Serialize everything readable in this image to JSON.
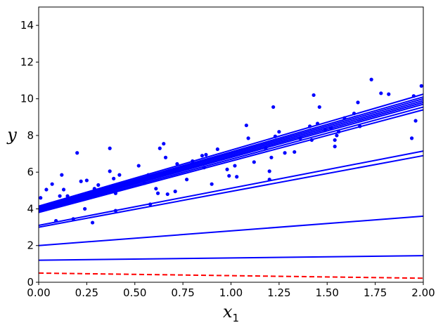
{
  "chart_data": {
    "type": "scatter",
    "title": "",
    "xlabel": "x",
    "xlabel_sub": "1",
    "ylabel": "y",
    "xlim": [
      0,
      2
    ],
    "ylim": [
      0,
      15
    ],
    "grid": false,
    "legend": "none",
    "x_ticks": [
      "0.00",
      "0.25",
      "0.50",
      "0.75",
      "1.00",
      "1.25",
      "1.50",
      "1.75",
      "2.00"
    ],
    "y_ticks": [
      "0",
      "2",
      "4",
      "6",
      "8",
      "10",
      "12",
      "14"
    ],
    "colors": {
      "points": "#0000ff",
      "lines": "#0000ff",
      "initial_line": "#ff0000"
    },
    "points": [
      {
        "x": 0.01,
        "y": 4.6
      },
      {
        "x": 0.04,
        "y": 5.05
      },
      {
        "x": 0.07,
        "y": 5.35
      },
      {
        "x": 0.09,
        "y": 3.35
      },
      {
        "x": 0.11,
        "y": 4.7
      },
      {
        "x": 0.12,
        "y": 5.85
      },
      {
        "x": 0.13,
        "y": 5.05
      },
      {
        "x": 0.15,
        "y": 4.7
      },
      {
        "x": 0.18,
        "y": 3.45
      },
      {
        "x": 0.2,
        "y": 7.05
      },
      {
        "x": 0.22,
        "y": 5.5
      },
      {
        "x": 0.24,
        "y": 4.0
      },
      {
        "x": 0.25,
        "y": 5.55
      },
      {
        "x": 0.28,
        "y": 3.25
      },
      {
        "x": 0.29,
        "y": 5.1
      },
      {
        "x": 0.31,
        "y": 5.3
      },
      {
        "x": 0.34,
        "y": 5.05
      },
      {
        "x": 0.37,
        "y": 7.3
      },
      {
        "x": 0.37,
        "y": 6.05
      },
      {
        "x": 0.39,
        "y": 5.65
      },
      {
        "x": 0.4,
        "y": 3.9
      },
      {
        "x": 0.4,
        "y": 4.85
      },
      {
        "x": 0.42,
        "y": 5.85
      },
      {
        "x": 0.52,
        "y": 6.35
      },
      {
        "x": 0.55,
        "y": 5.4
      },
      {
        "x": 0.57,
        "y": 5.85
      },
      {
        "x": 0.58,
        "y": 4.25
      },
      {
        "x": 0.61,
        "y": 5.1
      },
      {
        "x": 0.62,
        "y": 4.85
      },
      {
        "x": 0.63,
        "y": 7.3
      },
      {
        "x": 0.65,
        "y": 7.55
      },
      {
        "x": 0.66,
        "y": 6.8
      },
      {
        "x": 0.67,
        "y": 4.8
      },
      {
        "x": 0.71,
        "y": 4.95
      },
      {
        "x": 0.72,
        "y": 6.45
      },
      {
        "x": 0.77,
        "y": 5.6
      },
      {
        "x": 0.8,
        "y": 6.6
      },
      {
        "x": 0.85,
        "y": 6.9
      },
      {
        "x": 0.86,
        "y": 6.25
      },
      {
        "x": 0.87,
        "y": 6.95
      },
      {
        "x": 0.9,
        "y": 5.35
      },
      {
        "x": 0.93,
        "y": 7.25
      },
      {
        "x": 0.98,
        "y": 6.15
      },
      {
        "x": 0.99,
        "y": 5.8
      },
      {
        "x": 1.02,
        "y": 6.35
      },
      {
        "x": 1.03,
        "y": 5.75
      },
      {
        "x": 1.08,
        "y": 8.55
      },
      {
        "x": 1.09,
        "y": 7.85
      },
      {
        "x": 1.12,
        "y": 6.55
      },
      {
        "x": 1.18,
        "y": 7.3
      },
      {
        "x": 1.2,
        "y": 6.05
      },
      {
        "x": 1.2,
        "y": 5.6
      },
      {
        "x": 1.21,
        "y": 6.8
      },
      {
        "x": 1.22,
        "y": 9.55
      },
      {
        "x": 1.23,
        "y": 7.95
      },
      {
        "x": 1.25,
        "y": 8.2
      },
      {
        "x": 1.28,
        "y": 7.05
      },
      {
        "x": 1.33,
        "y": 7.1
      },
      {
        "x": 1.36,
        "y": 7.85
      },
      {
        "x": 1.41,
        "y": 8.5
      },
      {
        "x": 1.42,
        "y": 7.75
      },
      {
        "x": 1.43,
        "y": 10.2
      },
      {
        "x": 1.45,
        "y": 8.65
      },
      {
        "x": 1.46,
        "y": 9.55
      },
      {
        "x": 1.49,
        "y": 8.3
      },
      {
        "x": 1.52,
        "y": 8.4
      },
      {
        "x": 1.54,
        "y": 7.4
      },
      {
        "x": 1.54,
        "y": 7.75
      },
      {
        "x": 1.55,
        "y": 8.0
      },
      {
        "x": 1.56,
        "y": 8.2
      },
      {
        "x": 1.59,
        "y": 8.95
      },
      {
        "x": 1.64,
        "y": 9.2
      },
      {
        "x": 1.66,
        "y": 9.8
      },
      {
        "x": 1.67,
        "y": 8.5
      },
      {
        "x": 1.73,
        "y": 11.05
      },
      {
        "x": 1.78,
        "y": 10.3
      },
      {
        "x": 1.82,
        "y": 10.25
      },
      {
        "x": 1.94,
        "y": 7.85
      },
      {
        "x": 1.95,
        "y": 10.15
      },
      {
        "x": 1.96,
        "y": 8.8
      },
      {
        "x": 1.99,
        "y": 10.7
      }
    ],
    "initial_line": {
      "x": [
        0,
        2
      ],
      "y": [
        0.5,
        0.22
      ]
    },
    "lines": [
      {
        "x": [
          0,
          2
        ],
        "y": [
          1.2,
          1.45
        ]
      },
      {
        "x": [
          0,
          2
        ],
        "y": [
          2.0,
          3.6
        ]
      },
      {
        "x": [
          0,
          2
        ],
        "y": [
          3.0,
          6.9
        ]
      },
      {
        "x": [
          0,
          2
        ],
        "y": [
          3.1,
          7.15
        ]
      },
      {
        "x": [
          0,
          2
        ],
        "y": [
          3.8,
          9.4
        ]
      },
      {
        "x": [
          0,
          2
        ],
        "y": [
          3.85,
          9.55
        ]
      },
      {
        "x": [
          0,
          2
        ],
        "y": [
          3.9,
          9.7
        ]
      },
      {
        "x": [
          0,
          2
        ],
        "y": [
          3.95,
          9.8
        ]
      },
      {
        "x": [
          0,
          2
        ],
        "y": [
          4.0,
          9.9
        ]
      },
      {
        "x": [
          0,
          2
        ],
        "y": [
          4.05,
          10.0
        ]
      },
      {
        "x": [
          0,
          2
        ],
        "y": [
          4.1,
          10.1
        ]
      },
      {
        "x": [
          0,
          2
        ],
        "y": [
          4.15,
          10.25
        ]
      }
    ]
  }
}
